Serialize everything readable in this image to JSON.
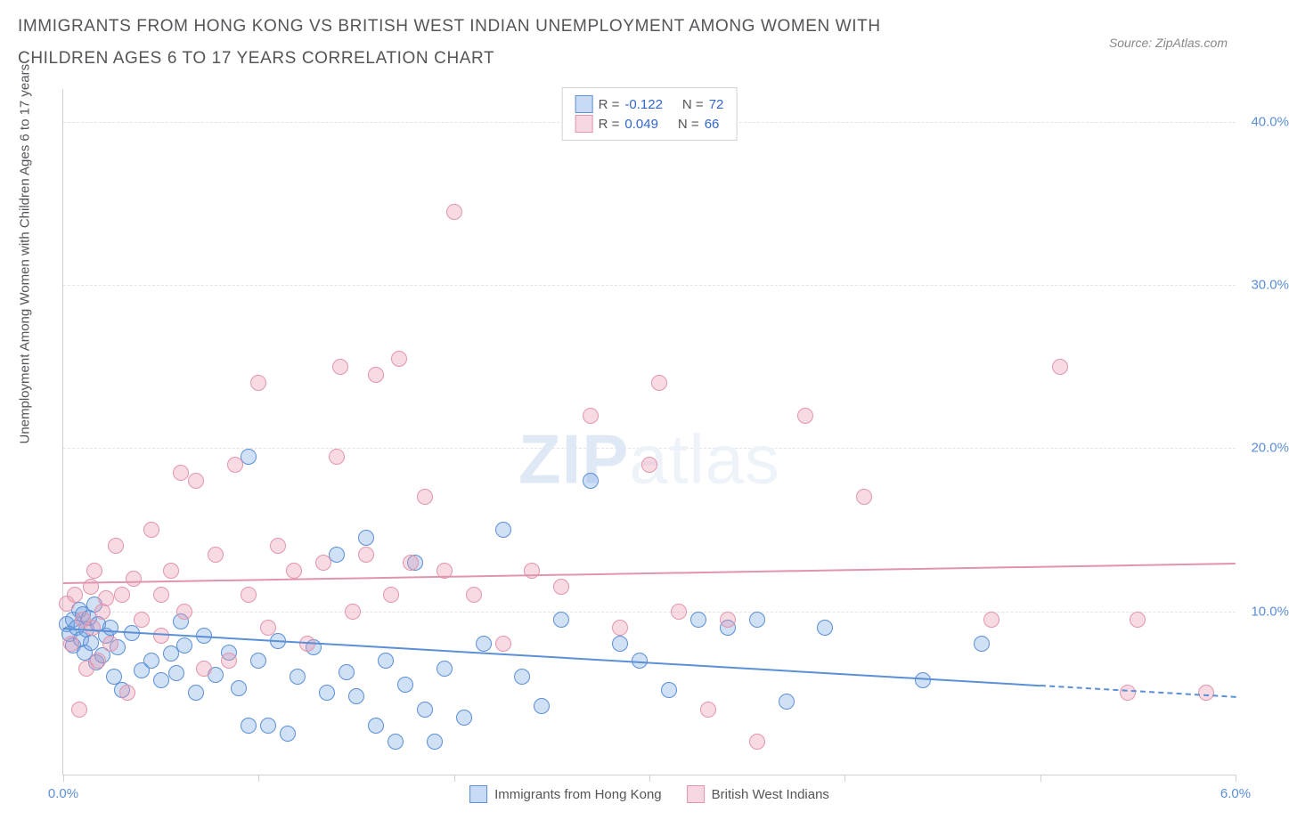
{
  "title": "IMMIGRANTS FROM HONG KONG VS BRITISH WEST INDIAN UNEMPLOYMENT AMONG WOMEN WITH CHILDREN AGES 6 TO 17 YEARS CORRELATION CHART",
  "source": "Source: ZipAtlas.com",
  "watermark": {
    "zip": "ZIP",
    "atlas": "atlas"
  },
  "y_axis_title": "Unemployment Among Women with Children Ages 6 to 17 years",
  "chart": {
    "type": "scatter",
    "xlim": [
      0.0,
      6.0
    ],
    "ylim": [
      0.0,
      42.0
    ],
    "x_ticks": [
      0.0,
      1.0,
      2.0,
      3.0,
      4.0,
      5.0,
      6.0
    ],
    "x_tick_labels": {
      "0": "0.0%",
      "6": "6.0%"
    },
    "y_ticks": [
      10.0,
      20.0,
      30.0,
      40.0
    ],
    "y_tick_labels": [
      "10.0%",
      "20.0%",
      "30.0%",
      "40.0%"
    ],
    "background_color": "#ffffff",
    "grid_color": "#e4e4e4",
    "axis_color": "#d0d0d0",
    "tick_label_color": "#5b8fd6",
    "title_color": "#555559",
    "title_fontsize": 19,
    "label_fontsize": 15,
    "marker_radius": 8,
    "marker_border_width": 1.5,
    "regression_line_width": 2
  },
  "series": [
    {
      "name": "Immigrants from Hong Kong",
      "color_fill": "rgba(120,165,225,0.35)",
      "color_border": "#5b8fd6",
      "legend_swatch_fill": "#c7dbf4",
      "legend_swatch_border": "#5b8fd6",
      "r_value": "-0.122",
      "n_value": "72",
      "regression": {
        "x1": 0.0,
        "y1": 9.0,
        "x2": 5.0,
        "y2": 5.5,
        "dash_from_x": 5.0,
        "dash_to_x": 6.0
      },
      "points": [
        [
          0.02,
          9.2
        ],
        [
          0.03,
          8.6
        ],
        [
          0.05,
          9.5
        ],
        [
          0.05,
          7.9
        ],
        [
          0.07,
          9.0
        ],
        [
          0.08,
          10.1
        ],
        [
          0.09,
          8.3
        ],
        [
          0.1,
          9.8
        ],
        [
          0.11,
          7.5
        ],
        [
          0.12,
          8.9
        ],
        [
          0.13,
          9.6
        ],
        [
          0.14,
          8.1
        ],
        [
          0.16,
          10.4
        ],
        [
          0.17,
          6.9
        ],
        [
          0.18,
          9.2
        ],
        [
          0.2,
          7.3
        ],
        [
          0.22,
          8.5
        ],
        [
          0.24,
          9.0
        ],
        [
          0.26,
          6.0
        ],
        [
          0.28,
          7.8
        ],
        [
          0.3,
          5.2
        ],
        [
          0.35,
          8.7
        ],
        [
          0.4,
          6.4
        ],
        [
          0.45,
          7.0
        ],
        [
          0.5,
          5.8
        ],
        [
          0.55,
          7.4
        ],
        [
          0.58,
          6.2
        ],
        [
          0.62,
          7.9
        ],
        [
          0.68,
          5.0
        ],
        [
          0.72,
          8.5
        ],
        [
          0.78,
          6.1
        ],
        [
          0.85,
          7.5
        ],
        [
          0.9,
          5.3
        ],
        [
          0.95,
          3.0
        ],
        [
          1.0,
          7.0
        ],
        [
          1.05,
          3.0
        ],
        [
          1.1,
          8.2
        ],
        [
          1.15,
          2.5
        ],
        [
          1.2,
          6.0
        ],
        [
          1.28,
          7.8
        ],
        [
          1.35,
          5.0
        ],
        [
          1.4,
          13.5
        ],
        [
          1.45,
          6.3
        ],
        [
          1.5,
          4.8
        ],
        [
          1.55,
          14.5
        ],
        [
          1.6,
          3.0
        ],
        [
          1.65,
          7.0
        ],
        [
          1.7,
          2.0
        ],
        [
          1.75,
          5.5
        ],
        [
          1.8,
          13.0
        ],
        [
          1.85,
          4.0
        ],
        [
          1.9,
          2.0
        ],
        [
          1.95,
          6.5
        ],
        [
          2.05,
          3.5
        ],
        [
          2.15,
          8.0
        ],
        [
          2.25,
          15.0
        ],
        [
          2.35,
          6.0
        ],
        [
          2.45,
          4.2
        ],
        [
          2.55,
          9.5
        ],
        [
          2.7,
          18.0
        ],
        [
          2.85,
          8.0
        ],
        [
          2.95,
          7.0
        ],
        [
          3.1,
          5.2
        ],
        [
          3.25,
          9.5
        ],
        [
          3.4,
          9.0
        ],
        [
          3.55,
          9.5
        ],
        [
          3.7,
          4.5
        ],
        [
          3.9,
          9.0
        ],
        [
          4.4,
          5.8
        ],
        [
          4.7,
          8.0
        ],
        [
          0.95,
          19.5
        ],
        [
          0.6,
          9.4
        ]
      ]
    },
    {
      "name": "British West Indians",
      "color_fill": "rgba(235,150,175,0.35)",
      "color_border": "#e195ad",
      "legend_swatch_fill": "#f6d6e0",
      "legend_swatch_border": "#e195ad",
      "r_value": "0.049",
      "n_value": "66",
      "regression": {
        "x1": 0.0,
        "y1": 11.8,
        "x2": 6.0,
        "y2": 13.0
      },
      "points": [
        [
          0.02,
          10.5
        ],
        [
          0.04,
          8.0
        ],
        [
          0.06,
          11.0
        ],
        [
          0.08,
          4.0
        ],
        [
          0.1,
          9.5
        ],
        [
          0.12,
          6.5
        ],
        [
          0.14,
          11.5
        ],
        [
          0.16,
          12.5
        ],
        [
          0.18,
          7.0
        ],
        [
          0.2,
          10.0
        ],
        [
          0.22,
          10.8
        ],
        [
          0.24,
          8.0
        ],
        [
          0.27,
          14.0
        ],
        [
          0.3,
          11.0
        ],
        [
          0.33,
          5.0
        ],
        [
          0.36,
          12.0
        ],
        [
          0.4,
          9.5
        ],
        [
          0.45,
          15.0
        ],
        [
          0.5,
          11.0
        ],
        [
          0.55,
          12.5
        ],
        [
          0.6,
          18.5
        ],
        [
          0.62,
          10.0
        ],
        [
          0.68,
          18.0
        ],
        [
          0.72,
          6.5
        ],
        [
          0.78,
          13.5
        ],
        [
          0.85,
          7.0
        ],
        [
          0.88,
          19.0
        ],
        [
          0.95,
          11.0
        ],
        [
          1.0,
          24.0
        ],
        [
          1.05,
          9.0
        ],
        [
          1.1,
          14.0
        ],
        [
          1.18,
          12.5
        ],
        [
          1.25,
          8.0
        ],
        [
          1.33,
          13.0
        ],
        [
          1.4,
          19.5
        ],
        [
          1.42,
          25.0
        ],
        [
          1.48,
          10.0
        ],
        [
          1.55,
          13.5
        ],
        [
          1.6,
          24.5
        ],
        [
          1.68,
          11.0
        ],
        [
          1.72,
          25.5
        ],
        [
          1.78,
          13.0
        ],
        [
          1.85,
          17.0
        ],
        [
          1.95,
          12.5
        ],
        [
          2.0,
          34.5
        ],
        [
          2.1,
          11.0
        ],
        [
          2.25,
          8.0
        ],
        [
          2.4,
          12.5
        ],
        [
          2.55,
          11.5
        ],
        [
          2.7,
          22.0
        ],
        [
          2.85,
          9.0
        ],
        [
          3.0,
          19.0
        ],
        [
          3.05,
          24.0
        ],
        [
          3.15,
          10.0
        ],
        [
          3.3,
          4.0
        ],
        [
          3.4,
          9.5
        ],
        [
          3.55,
          2.0
        ],
        [
          3.8,
          22.0
        ],
        [
          4.1,
          17.0
        ],
        [
          4.75,
          9.5
        ],
        [
          5.1,
          25.0
        ],
        [
          5.45,
          5.0
        ],
        [
          5.5,
          9.5
        ],
        [
          5.85,
          5.0
        ],
        [
          0.15,
          9.0
        ],
        [
          0.5,
          8.5
        ]
      ]
    }
  ],
  "legend_top": {
    "r_label": "R =",
    "n_label": "N ="
  },
  "legend_bottom": {
    "items": [
      "Immigrants from Hong Kong",
      "British West Indians"
    ]
  }
}
